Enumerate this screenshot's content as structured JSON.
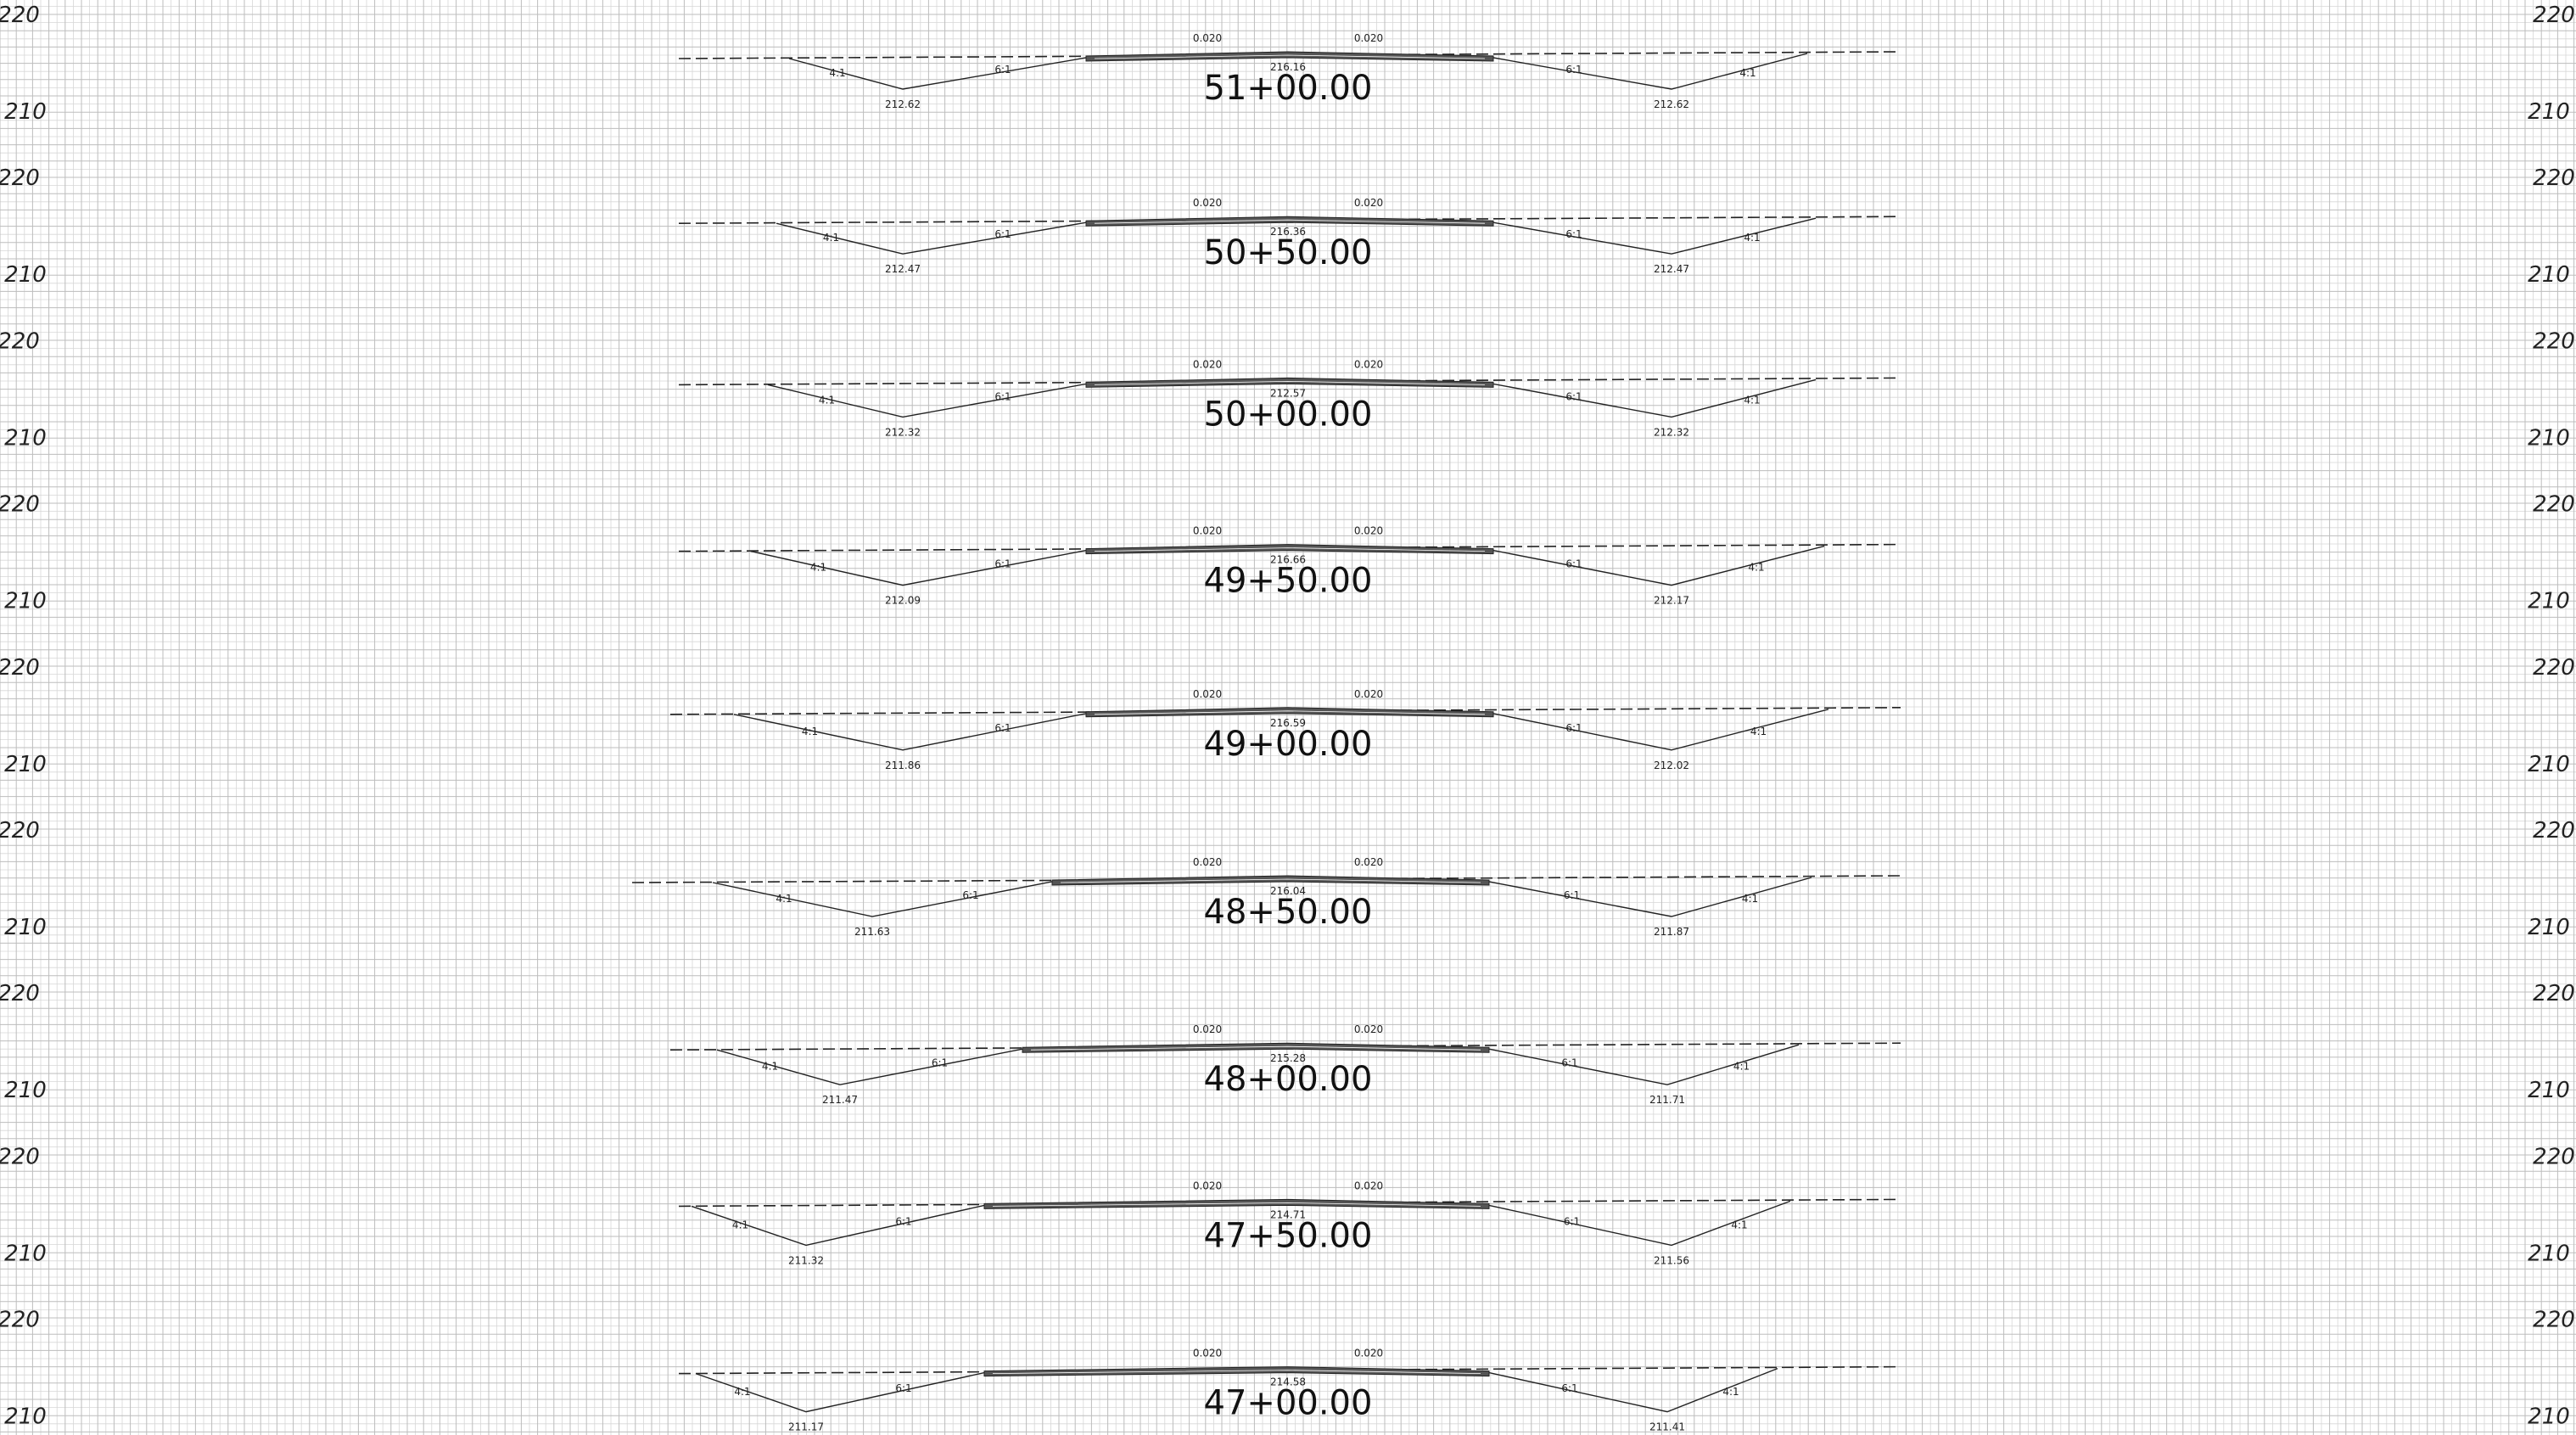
{
  "elevation_labels": {
    "upper": "220",
    "lower": "210"
  },
  "colors": {
    "grid": "#bdbdbd",
    "ink": "#222222",
    "background": "#ffffff"
  },
  "sections": [
    {
      "station": "51+00.00",
      "centerline_elev": "216.16",
      "crown_slope_left": "0.020",
      "crown_slope_right": "0.020",
      "ditch_left_elev": "212.62",
      "ditch_right_elev": "212.62",
      "left_fore_slope": "6:1",
      "left_back_slope": "4:1",
      "right_fore_slope": "6:1",
      "right_back_slope": "4:1"
    },
    {
      "station": "50+50.00",
      "centerline_elev": "216.36",
      "crown_slope_left": "0.020",
      "crown_slope_right": "0.020",
      "ditch_left_elev": "212.47",
      "ditch_right_elev": "212.47",
      "left_fore_slope": "6:1",
      "left_back_slope": "4:1",
      "right_fore_slope": "6:1",
      "right_back_slope": "4:1"
    },
    {
      "station": "50+00.00",
      "centerline_elev": "212.57",
      "crown_slope_left": "0.020",
      "crown_slope_right": "0.020",
      "ditch_left_elev": "212.32",
      "ditch_right_elev": "212.32",
      "left_fore_slope": "6:1",
      "left_back_slope": "4:1",
      "right_fore_slope": "6:1",
      "right_back_slope": "4:1"
    },
    {
      "station": "49+50.00",
      "centerline_elev": "216.66",
      "crown_slope_left": "0.020",
      "crown_slope_right": "0.020",
      "ditch_left_elev": "212.09",
      "ditch_right_elev": "212.17",
      "left_fore_slope": "6:1",
      "left_back_slope": "4:1",
      "right_fore_slope": "6:1",
      "right_back_slope": "4:1"
    },
    {
      "station": "49+00.00",
      "centerline_elev": "216.59",
      "crown_slope_left": "0.020",
      "crown_slope_right": "0.020",
      "ditch_left_elev": "211.86",
      "ditch_right_elev": "212.02",
      "left_fore_slope": "6:1",
      "left_back_slope": "4:1",
      "right_fore_slope": "6:1",
      "right_back_slope": "4:1"
    },
    {
      "station": "48+50.00",
      "centerline_elev": "216.04",
      "crown_slope_left": "0.020",
      "crown_slope_right": "0.020",
      "ditch_left_elev": "211.63",
      "ditch_right_elev": "211.87",
      "left_fore_slope": "6:1",
      "left_back_slope": "4:1",
      "right_fore_slope": "6:1",
      "right_back_slope": "4:1"
    },
    {
      "station": "48+00.00",
      "centerline_elev": "215.28",
      "crown_slope_left": "0.020",
      "crown_slope_right": "0.020",
      "ditch_left_elev": "211.47",
      "ditch_right_elev": "211.71",
      "left_fore_slope": "6:1",
      "left_back_slope": "4:1",
      "right_fore_slope": "6:1",
      "right_back_slope": "4:1"
    },
    {
      "station": "47+50.00",
      "centerline_elev": "214.71",
      "crown_slope_left": "0.020",
      "crown_slope_right": "0.020",
      "ditch_left_elev": "211.32",
      "ditch_right_elev": "211.56",
      "left_fore_slope": "6:1",
      "left_back_slope": "4:1",
      "right_fore_slope": "6:1",
      "right_back_slope": "4:1"
    },
    {
      "station": "47+00.00",
      "centerline_elev": "214.58",
      "crown_slope_left": "0.020",
      "crown_slope_right": "0.020",
      "ditch_left_elev": "211.17",
      "ditch_right_elev": "211.41",
      "left_fore_slope": "6:1",
      "left_back_slope": "4:1",
      "right_fore_slope": "6:1",
      "right_back_slope": "4:1"
    }
  ]
}
